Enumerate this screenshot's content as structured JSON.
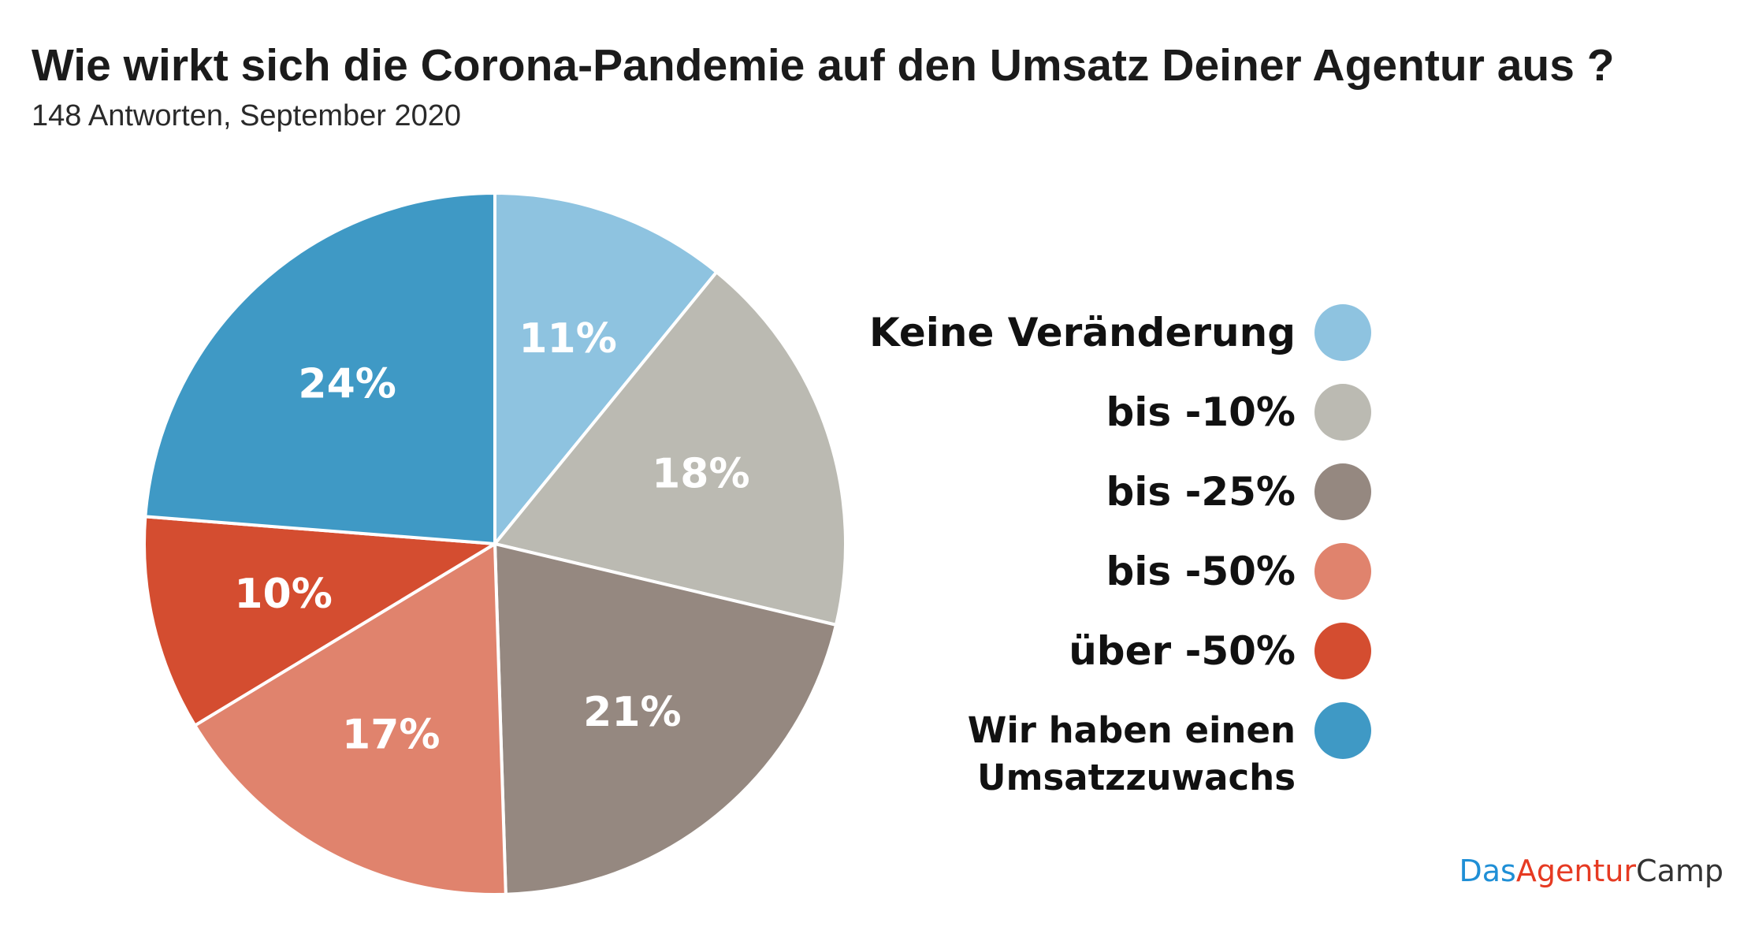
{
  "title": "Wie wirkt sich die Corona-Pandemie auf den Umsatz Deiner Agentur aus ?",
  "subtitle": "148 Antworten, September 2020",
  "brand": {
    "part1": "Das",
    "part2": "Agentur",
    "part3": "Camp",
    "color1": "#1f8fd6",
    "color2": "#e63a22",
    "color3": "#333333"
  },
  "chart_data": {
    "type": "pie",
    "title": "Wie wirkt sich die Corona-Pandemie auf den Umsatz Deiner Agentur aus ?",
    "subtitle": "148 Antworten, September 2020",
    "legend_position": "right",
    "slices": [
      {
        "label": "Keine Veränderung",
        "value": 11,
        "value_label": "11%",
        "color": "#8ec3e0"
      },
      {
        "label": "bis -10%",
        "value": 18,
        "value_label": "18%",
        "color": "#bbbab2"
      },
      {
        "label": "bis -25%",
        "value": 21,
        "value_label": "21%",
        "color": "#958880"
      },
      {
        "label": "bis -50%",
        "value": 17,
        "value_label": "17%",
        "color": "#e0836d"
      },
      {
        "label": "über -50%",
        "value": 10,
        "value_label": "10%",
        "color": "#d44d30"
      },
      {
        "label": "Wir haben einen\nUmsatzzuwachs",
        "value": 24,
        "value_label": "24%",
        "color": "#3f99c5"
      }
    ]
  }
}
